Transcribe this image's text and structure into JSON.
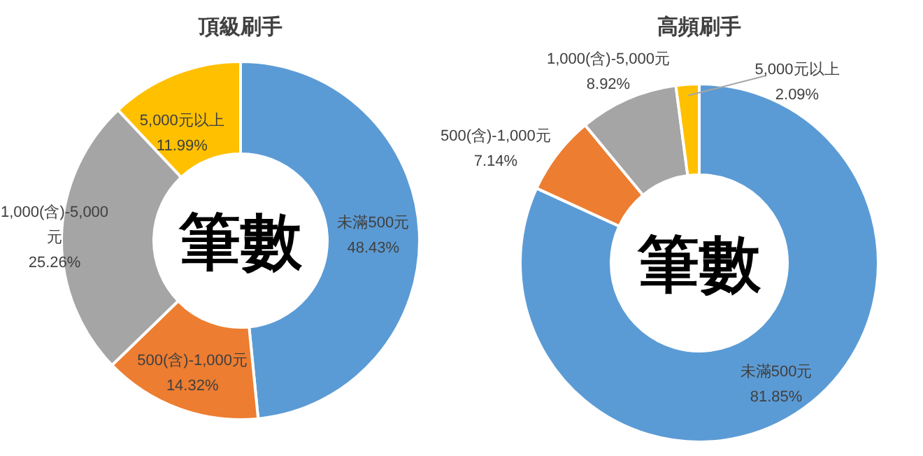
{
  "chart_data": [
    {
      "type": "donut",
      "title": "頂級刷手",
      "categories": [
        "未滿500元",
        "500(含)-1,000元",
        "1,000(含)-5,000元",
        "5,000元以上"
      ],
      "values": [
        48.43,
        14.32,
        25.26,
        11.99
      ],
      "colors": [
        "#5b9bd5",
        "#ed7d31",
        "#a5a5a5",
        "#ffc000"
      ],
      "value_labels": [
        "48.43%",
        "14.32%",
        "25.26%",
        "11.99%"
      ],
      "annotations": [
        "筆數"
      ]
    },
    {
      "type": "donut",
      "title": "高頻刷手",
      "categories": [
        "未滿500元",
        "500(含)-1,000元",
        "1,000(含)-5,000元",
        "5,000元以上"
      ],
      "values": [
        81.85,
        7.14,
        8.92,
        2.09
      ],
      "colors": [
        "#5b9bd5",
        "#ed7d31",
        "#a5a5a5",
        "#ffc000"
      ],
      "value_labels": [
        "81.85%",
        "7.14%",
        "8.92%",
        "2.09%"
      ],
      "annotations": [
        "筆數"
      ]
    }
  ]
}
